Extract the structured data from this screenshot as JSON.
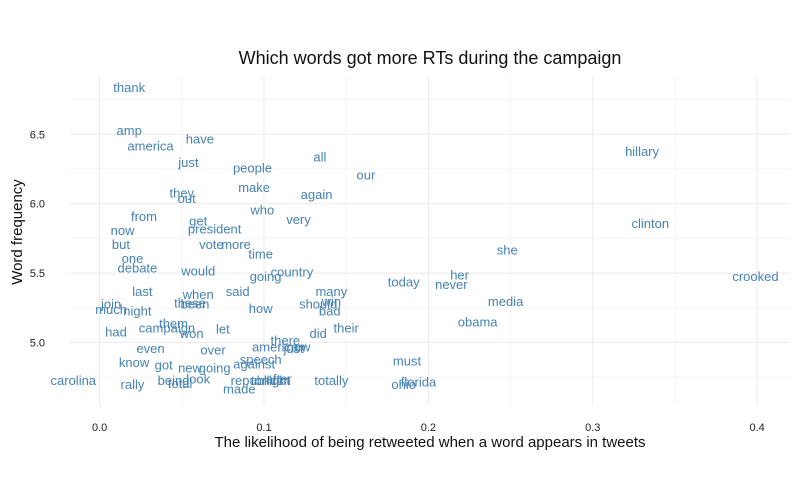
{
  "chart_data": {
    "type": "scatter",
    "title": "Which words got more RTs during the campaign",
    "xlabel": "The likelihood of being retweeted when a word appears in tweets",
    "ylabel": "Word frequency",
    "xlim": [
      -0.018,
      0.42
    ],
    "ylim": [
      4.55,
      6.92
    ],
    "x_ticks": [
      "0.0",
      "0.1",
      "0.2",
      "0.3",
      "0.4"
    ],
    "x_tick_values": [
      0,
      0.1,
      0.2,
      0.3,
      0.4
    ],
    "y_ticks": [
      "5.0",
      "5.5",
      "6.0",
      "6.5"
    ],
    "y_tick_values": [
      5.0,
      5.5,
      6.0,
      6.5
    ],
    "grid": true,
    "point_color": "#4682b4",
    "points": [
      {
        "label": "thank",
        "x": 0.018,
        "y": 6.84
      },
      {
        "label": "amp",
        "x": 0.018,
        "y": 6.53
      },
      {
        "label": "america",
        "x": 0.031,
        "y": 6.42
      },
      {
        "label": "have",
        "x": 0.061,
        "y": 6.47
      },
      {
        "label": "just",
        "x": 0.054,
        "y": 6.3
      },
      {
        "label": "people",
        "x": 0.093,
        "y": 6.26
      },
      {
        "label": "all",
        "x": 0.134,
        "y": 6.34
      },
      {
        "label": "our",
        "x": 0.162,
        "y": 6.21
      },
      {
        "label": "hillary",
        "x": 0.33,
        "y": 6.38
      },
      {
        "label": "make",
        "x": 0.094,
        "y": 6.12
      },
      {
        "label": "they",
        "x": 0.05,
        "y": 6.08
      },
      {
        "label": "out",
        "x": 0.053,
        "y": 6.04
      },
      {
        "label": "again",
        "x": 0.132,
        "y": 6.07
      },
      {
        "label": "who",
        "x": 0.099,
        "y": 5.96
      },
      {
        "label": "from",
        "x": 0.027,
        "y": 5.91
      },
      {
        "label": "very",
        "x": 0.121,
        "y": 5.89
      },
      {
        "label": "get",
        "x": 0.06,
        "y": 5.88
      },
      {
        "label": "now",
        "x": 0.014,
        "y": 5.81
      },
      {
        "label": "president",
        "x": 0.07,
        "y": 5.82
      },
      {
        "label": "clinton",
        "x": 0.335,
        "y": 5.86
      },
      {
        "label": "but",
        "x": 0.013,
        "y": 5.71
      },
      {
        "label": "vote",
        "x": 0.068,
        "y": 5.71
      },
      {
        "label": "more",
        "x": 0.083,
        "y": 5.71
      },
      {
        "label": "she",
        "x": 0.248,
        "y": 5.67
      },
      {
        "label": "time",
        "x": 0.098,
        "y": 5.64
      },
      {
        "label": "one",
        "x": 0.02,
        "y": 5.61
      },
      {
        "label": "debate",
        "x": 0.023,
        "y": 5.54
      },
      {
        "label": "would",
        "x": 0.06,
        "y": 5.52
      },
      {
        "label": "country",
        "x": 0.117,
        "y": 5.51
      },
      {
        "label": "going",
        "x": 0.101,
        "y": 5.48
      },
      {
        "label": "her",
        "x": 0.219,
        "y": 5.49
      },
      {
        "label": "crooked",
        "x": 0.399,
        "y": 5.48
      },
      {
        "label": "today",
        "x": 0.185,
        "y": 5.44
      },
      {
        "label": "never",
        "x": 0.214,
        "y": 5.42
      },
      {
        "label": "last",
        "x": 0.026,
        "y": 5.37
      },
      {
        "label": "said",
        "x": 0.084,
        "y": 5.37
      },
      {
        "label": "many",
        "x": 0.141,
        "y": 5.37
      },
      {
        "label": "when",
        "x": 0.06,
        "y": 5.35
      },
      {
        "label": "win",
        "x": 0.141,
        "y": 5.3
      },
      {
        "label": "should",
        "x": 0.133,
        "y": 5.28
      },
      {
        "label": "media",
        "x": 0.247,
        "y": 5.3
      },
      {
        "label": "join",
        "x": 0.007,
        "y": 5.28
      },
      {
        "label": "these",
        "x": 0.055,
        "y": 5.29
      },
      {
        "label": "been",
        "x": 0.058,
        "y": 5.28
      },
      {
        "label": "how",
        "x": 0.098,
        "y": 5.25
      },
      {
        "label": "bad",
        "x": 0.14,
        "y": 5.23
      },
      {
        "label": "much",
        "x": 0.007,
        "y": 5.24
      },
      {
        "label": "night",
        "x": 0.023,
        "y": 5.23
      },
      {
        "label": "obama",
        "x": 0.23,
        "y": 5.15
      },
      {
        "label": "them",
        "x": 0.045,
        "y": 5.14
      },
      {
        "label": "campaign",
        "x": 0.041,
        "y": 5.11
      },
      {
        "label": "let",
        "x": 0.075,
        "y": 5.1
      },
      {
        "label": "their",
        "x": 0.15,
        "y": 5.11
      },
      {
        "label": "had",
        "x": 0.01,
        "y": 5.08
      },
      {
        "label": "won",
        "x": 0.056,
        "y": 5.07
      },
      {
        "label": "did",
        "x": 0.133,
        "y": 5.07
      },
      {
        "label": "there",
        "x": 0.113,
        "y": 5.02
      },
      {
        "label": "american",
        "x": 0.109,
        "y": 4.97
      },
      {
        "label": "now",
        "x": 0.121,
        "y": 4.97
      },
      {
        "label": "just",
        "x": 0.118,
        "y": 4.96
      },
      {
        "label": "even",
        "x": 0.031,
        "y": 4.96
      },
      {
        "label": "over",
        "x": 0.069,
        "y": 4.95
      },
      {
        "label": "speech",
        "x": 0.098,
        "y": 4.88
      },
      {
        "label": "must",
        "x": 0.187,
        "y": 4.87
      },
      {
        "label": "know",
        "x": 0.021,
        "y": 4.86
      },
      {
        "label": "got",
        "x": 0.039,
        "y": 4.84
      },
      {
        "label": "new",
        "x": 0.055,
        "y": 4.82
      },
      {
        "label": "going",
        "x": 0.07,
        "y": 4.82
      },
      {
        "label": "against",
        "x": 0.094,
        "y": 4.85
      },
      {
        "label": "carolina",
        "x": -0.016,
        "y": 4.73
      },
      {
        "label": "being",
        "x": 0.045,
        "y": 4.73
      },
      {
        "label": "look",
        "x": 0.06,
        "y": 4.74
      },
      {
        "label": "republican",
        "x": 0.098,
        "y": 4.73
      },
      {
        "label": "tonight",
        "x": 0.104,
        "y": 4.73
      },
      {
        "label": "after",
        "x": 0.109,
        "y": 4.74
      },
      {
        "label": "totally",
        "x": 0.141,
        "y": 4.73
      },
      {
        "label": "florida",
        "x": 0.194,
        "y": 4.72
      },
      {
        "label": "ohio",
        "x": 0.185,
        "y": 4.7
      },
      {
        "label": "rally",
        "x": 0.02,
        "y": 4.7
      },
      {
        "label": "total",
        "x": 0.049,
        "y": 4.71
      },
      {
        "label": "made",
        "x": 0.085,
        "y": 4.67
      }
    ]
  }
}
